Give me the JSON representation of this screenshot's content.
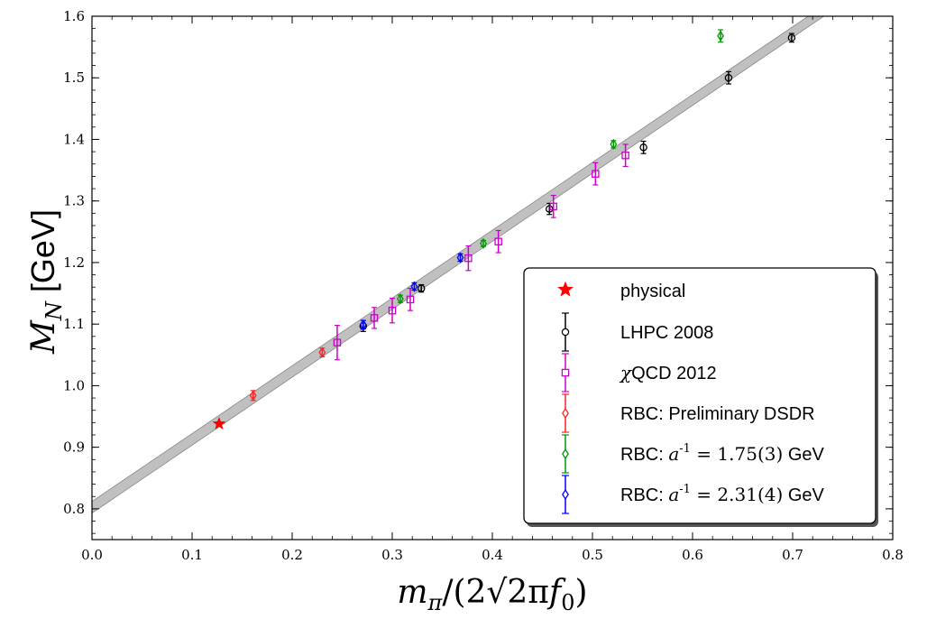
{
  "chart_data": {
    "type": "scatter",
    "xlabel": "m_π/(2√2πf_0)",
    "ylabel": "M_N [GeV]",
    "xlim": [
      0.0,
      0.8
    ],
    "ylim": [
      0.75,
      1.6
    ],
    "x_ticks": [
      "0.0",
      "0.1",
      "0.2",
      "0.3",
      "0.4",
      "0.5",
      "0.6",
      "0.7",
      "0.8"
    ],
    "y_ticks": [
      "0.8",
      "0.9",
      "1.0",
      "1.1",
      "1.2",
      "1.3",
      "1.4",
      "1.5",
      "1.6"
    ],
    "grid": false,
    "legend_position": "bottom-right",
    "fit_band": {
      "color": "#c0c0c0",
      "x": [
        0.0,
        0.8
      ],
      "y_low": [
        0.793,
        1.676
      ],
      "y_high": [
        0.812,
        1.693
      ]
    },
    "series": [
      {
        "name": "physical",
        "marker": "star",
        "color": "#ff0000",
        "points": [
          {
            "x": 0.127,
            "y": 0.938,
            "err": 0
          }
        ]
      },
      {
        "name": "LHPC 2008",
        "marker": "circle",
        "color": "#000000",
        "points": [
          {
            "x": 0.271,
            "y": 1.097,
            "err": 0.009
          },
          {
            "x": 0.329,
            "y": 1.158,
            "err": 0.006
          },
          {
            "x": 0.457,
            "y": 1.287,
            "err": 0.009
          },
          {
            "x": 0.551,
            "y": 1.387,
            "err": 0.01
          },
          {
            "x": 0.636,
            "y": 1.5,
            "err": 0.01
          },
          {
            "x": 0.699,
            "y": 1.565,
            "err": 0.007
          }
        ]
      },
      {
        "name": "χQCD 2012",
        "marker": "square",
        "color": "#cc00cc",
        "points": [
          {
            "x": 0.245,
            "y": 1.07,
            "err": 0.028
          },
          {
            "x": 0.282,
            "y": 1.11,
            "err": 0.017
          },
          {
            "x": 0.3,
            "y": 1.122,
            "err": 0.02
          },
          {
            "x": 0.318,
            "y": 1.14,
            "err": 0.018
          },
          {
            "x": 0.376,
            "y": 1.207,
            "err": 0.02
          },
          {
            "x": 0.406,
            "y": 1.234,
            "err": 0.018
          },
          {
            "x": 0.461,
            "y": 1.291,
            "err": 0.018
          },
          {
            "x": 0.503,
            "y": 1.344,
            "err": 0.018
          },
          {
            "x": 0.533,
            "y": 1.374,
            "err": 0.018
          }
        ]
      },
      {
        "name": "RBC: Preliminary DSDR",
        "marker": "diamond",
        "color": "#ff2222",
        "points": [
          {
            "x": 0.161,
            "y": 0.984,
            "err": 0.008
          },
          {
            "x": 0.23,
            "y": 1.054,
            "err": 0.007
          }
        ]
      },
      {
        "name": "RBC: a^{-1} = 1.75(3) GeV",
        "marker": "diamond",
        "color": "#009900",
        "points": [
          {
            "x": 0.308,
            "y": 1.141,
            "err": 0.006
          },
          {
            "x": 0.391,
            "y": 1.231,
            "err": 0.005
          },
          {
            "x": 0.521,
            "y": 1.392,
            "err": 0.006
          },
          {
            "x": 0.628,
            "y": 1.568,
            "err": 0.01
          }
        ]
      },
      {
        "name": "RBC: a^{-1} = 2.31(4) GeV",
        "marker": "diamond",
        "color": "#0000ff",
        "points": [
          {
            "x": 0.271,
            "y": 1.099,
            "err": 0.007
          },
          {
            "x": 0.322,
            "y": 1.161,
            "err": 0.006
          },
          {
            "x": 0.368,
            "y": 1.208,
            "err": 0.006
          }
        ]
      }
    ],
    "legend": [
      {
        "label": "physical",
        "marker": "star",
        "color": "#ff0000"
      },
      {
        "label": "LHPC 2008",
        "marker": "circle",
        "color": "#000000"
      },
      {
        "label": "χQCD 2012",
        "marker": "square",
        "color": "#cc00cc"
      },
      {
        "label": "RBC: Preliminary DSDR",
        "marker": "diamond",
        "color": "#ff2222"
      },
      {
        "label": "RBC: a^{-1} = 1.75(3) GeV",
        "marker": "diamond",
        "color": "#009900"
      },
      {
        "label": "RBC: a^{-1} = 2.31(4) GeV",
        "marker": "diamond",
        "color": "#0000ff"
      }
    ]
  }
}
